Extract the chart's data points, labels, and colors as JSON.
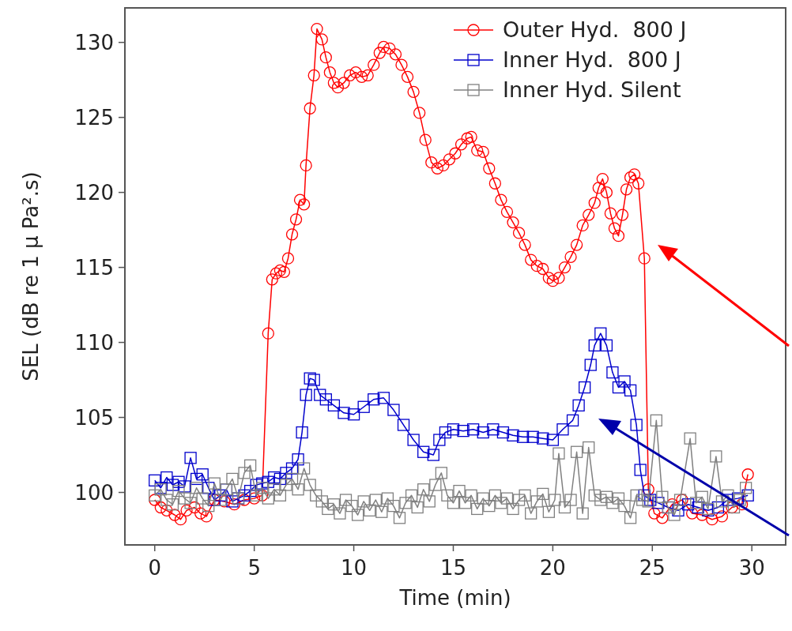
{
  "chart_data": {
    "type": "line",
    "xlabel": "Time (min)",
    "ylabel": "SEL (dB re 1 µ Pa².s)",
    "xlim": [
      -1.5,
      31.7
    ],
    "ylim": [
      96.5,
      132.3
    ],
    "xticks": [
      0,
      5,
      10,
      15,
      20,
      25,
      30
    ],
    "yticks": [
      100,
      105,
      110,
      115,
      120,
      125,
      130
    ],
    "grid": false,
    "legend": "top right",
    "line_style": "solid",
    "series": [
      {
        "name": "Outer Hyd.  800 J",
        "color": "#ff0000",
        "marker": "circle",
        "x": [
          0,
          0.3,
          0.6,
          1,
          1.3,
          1.6,
          2,
          2.3,
          2.6,
          3,
          3.5,
          4,
          4.5,
          5,
          5.4,
          5.7,
          5.9,
          6.1,
          6.3,
          6.5,
          6.7,
          6.9,
          7.1,
          7.3,
          7.5,
          7.6,
          7.8,
          8,
          8.15,
          8.4,
          8.6,
          8.8,
          9,
          9.2,
          9.5,
          9.8,
          10.1,
          10.4,
          10.7,
          11,
          11.3,
          11.5,
          11.8,
          12.1,
          12.4,
          12.7,
          13,
          13.3,
          13.6,
          13.9,
          14.2,
          14.5,
          14.8,
          15.1,
          15.4,
          15.7,
          15.9,
          16.2,
          16.5,
          16.8,
          17.1,
          17.4,
          17.7,
          18,
          18.3,
          18.6,
          18.9,
          19.2,
          19.5,
          19.8,
          20,
          20.3,
          20.6,
          20.9,
          21.2,
          21.5,
          21.8,
          22.1,
          22.3,
          22.5,
          22.7,
          22.9,
          23.1,
          23.3,
          23.5,
          23.7,
          23.9,
          24.1,
          24.3,
          24.6,
          24.8,
          25.1,
          25.5,
          26,
          26.5,
          27,
          27.5,
          28,
          28.5,
          29,
          29.5,
          29.8
        ],
        "values": [
          99.5,
          99,
          98.8,
          98.5,
          98.2,
          98.8,
          99,
          98.6,
          98.4,
          99.5,
          99.4,
          99.2,
          99.5,
          99.6,
          99.8,
          110.6,
          114.2,
          114.6,
          114.8,
          114.7,
          115.6,
          117.2,
          118.2,
          119.5,
          119.2,
          121.8,
          125.6,
          127.8,
          130.9,
          130.2,
          129,
          128,
          127.3,
          127,
          127.3,
          127.8,
          128,
          127.7,
          127.8,
          128.5,
          129.3,
          129.7,
          129.6,
          129.2,
          128.5,
          127.7,
          126.7,
          125.3,
          123.5,
          122,
          121.6,
          121.8,
          122.2,
          122.6,
          123.2,
          123.6,
          123.7,
          122.8,
          122.7,
          121.6,
          120.6,
          119.5,
          118.7,
          118,
          117.3,
          116.5,
          115.5,
          115.1,
          114.9,
          114.3,
          114.1,
          114.3,
          115,
          115.7,
          116.5,
          117.8,
          118.5,
          119.3,
          120.3,
          120.9,
          120,
          118.6,
          117.6,
          117.1,
          118.5,
          120.2,
          121,
          121.2,
          120.6,
          115.6,
          100.2,
          98.6,
          98.3,
          99.2,
          99.5,
          98.6,
          98.5,
          98.2,
          98.4,
          99,
          99.2,
          101.2
        ]
      },
      {
        "name": "Inner Hyd.  800 J",
        "color": "#0000cc",
        "marker": "square",
        "x": [
          0,
          0.3,
          0.6,
          0.9,
          1.2,
          1.5,
          1.8,
          2.1,
          2.4,
          2.7,
          3,
          3.3,
          3.6,
          3.9,
          4.2,
          4.5,
          4.8,
          5.1,
          5.4,
          5.7,
          6,
          6.3,
          6.6,
          6.9,
          7.2,
          7.4,
          7.6,
          7.8,
          8,
          8.3,
          8.6,
          9,
          9.5,
          10,
          10.5,
          11,
          11.5,
          12,
          12.5,
          13,
          13.5,
          14,
          14.3,
          14.6,
          15,
          15.5,
          16,
          16.5,
          17,
          17.5,
          18,
          18.5,
          19,
          19.5,
          20,
          20.5,
          21,
          21.3,
          21.6,
          21.9,
          22.1,
          22.4,
          22.7,
          23,
          23.3,
          23.6,
          23.9,
          24.2,
          24.4,
          24.6,
          24.9,
          25.3,
          25.8,
          26.3,
          26.8,
          27.3,
          27.8,
          28.3,
          28.8,
          29.3,
          29.8
        ],
        "values": [
          100.8,
          100.3,
          101,
          100.5,
          100.7,
          100.4,
          102.3,
          100.9,
          101.2,
          100.3,
          99.5,
          99.8,
          100.2,
          99.4,
          99.6,
          99.8,
          100.1,
          100.5,
          100.6,
          100.7,
          101,
          100.9,
          101.3,
          101.6,
          102.2,
          104,
          106.5,
          107.6,
          107.5,
          106.5,
          106.2,
          105.8,
          105.3,
          105.2,
          105.7,
          106.2,
          106.3,
          105.5,
          104.5,
          103.5,
          102.7,
          102.5,
          103.5,
          104,
          104.2,
          104.1,
          104.2,
          104,
          104.2,
          104,
          103.8,
          103.7,
          103.7,
          103.6,
          103.5,
          104.2,
          104.8,
          105.8,
          107,
          108.5,
          109.8,
          110.6,
          109.8,
          108,
          107,
          107.4,
          106.8,
          104.5,
          101.5,
          99.8,
          99.5,
          99.3,
          99,
          98.8,
          99.2,
          99,
          98.8,
          99,
          99.5,
          99.6,
          99.8
        ]
      },
      {
        "name": "Inner Hyd. Silent",
        "color": "#808080",
        "marker": "square",
        "x": [
          0,
          0.3,
          0.6,
          0.9,
          1.2,
          1.5,
          1.8,
          2.1,
          2.4,
          2.7,
          3,
          3.3,
          3.6,
          3.9,
          4.2,
          4.5,
          4.8,
          5.1,
          5.4,
          5.7,
          6,
          6.3,
          6.6,
          6.9,
          7.2,
          7.5,
          7.8,
          8.1,
          8.4,
          8.7,
          9,
          9.3,
          9.6,
          9.9,
          10.2,
          10.5,
          10.8,
          11.1,
          11.4,
          11.7,
          12,
          12.3,
          12.6,
          12.9,
          13.2,
          13.5,
          13.8,
          14.1,
          14.4,
          14.7,
          15,
          15.3,
          15.6,
          15.9,
          16.2,
          16.5,
          16.8,
          17.1,
          17.4,
          17.7,
          18,
          18.3,
          18.6,
          18.9,
          19.2,
          19.5,
          19.8,
          20.1,
          20.3,
          20.6,
          20.9,
          21.2,
          21.5,
          21.8,
          22.1,
          22.4,
          22.7,
          23,
          23.3,
          23.6,
          23.9,
          24.2,
          24.5,
          24.8,
          25.2,
          25.5,
          25.8,
          26.1,
          26.4,
          26.9,
          27.2,
          27.5,
          27.8,
          28.2,
          28.5,
          28.8,
          29.1,
          29.4,
          29.7
        ],
        "values": [
          99.8,
          100.2,
          99.5,
          99.2,
          100.1,
          99.6,
          99.3,
          100.3,
          99.6,
          99.1,
          100.6,
          99.5,
          100.2,
          100.9,
          99.6,
          101.3,
          101.8,
          99.8,
          100.3,
          99.6,
          100.2,
          99.8,
          100.5,
          100.9,
          100.2,
          101.6,
          100.5,
          99.8,
          99.4,
          98.9,
          99.2,
          98.6,
          99.5,
          99.1,
          98.5,
          99.4,
          98.8,
          99.5,
          98.7,
          99.6,
          99.1,
          98.3,
          99.3,
          99.8,
          99,
          100.2,
          99.4,
          100.5,
          101.3,
          99.8,
          99.3,
          100.1,
          99.3,
          99.8,
          98.9,
          99.6,
          99.1,
          99.8,
          99.3,
          99.6,
          98.9,
          99.5,
          99.8,
          98.6,
          99.4,
          99.9,
          98.7,
          99.5,
          102.6,
          99,
          99.5,
          102.7,
          98.6,
          103,
          99.8,
          99.5,
          99.7,
          99.3,
          99.6,
          99.1,
          98.3,
          99.8,
          99.5,
          99.4,
          104.8,
          99.7,
          99,
          98.5,
          99.5,
          103.6,
          99.3,
          99.7,
          98.9,
          102.4,
          99.4,
          99.8,
          99,
          99.5,
          100.3
        ]
      }
    ]
  }
}
